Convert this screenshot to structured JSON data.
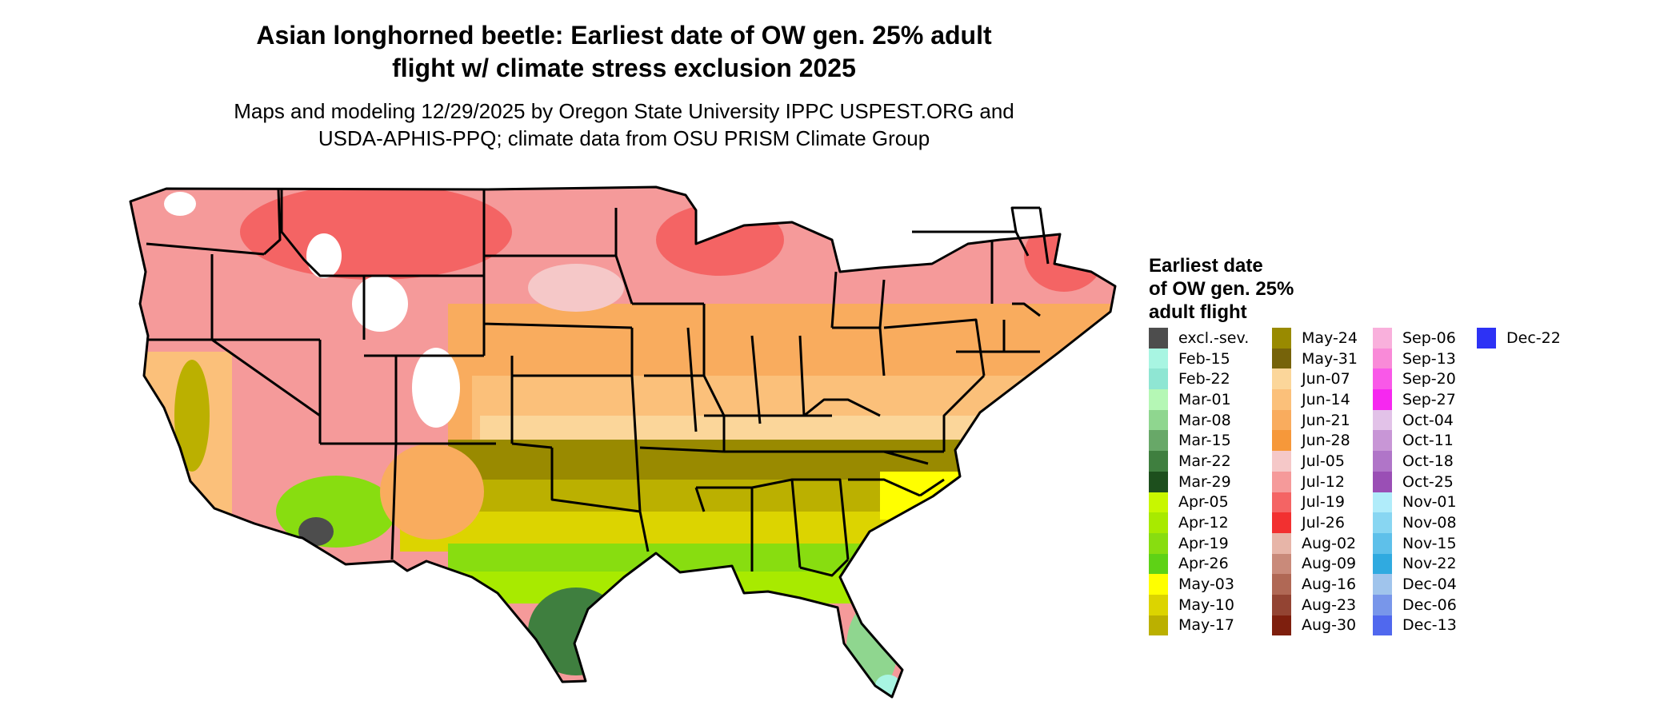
{
  "title_line1": "Asian longhorned beetle: Earliest date of OW gen. 25% adult",
  "title_line2": "flight w/ climate stress exclusion 2025",
  "subtitle_line1": "Maps and modeling 12/29/2025 by Oregon State University IPPC USPEST.ORG and",
  "subtitle_line2": "USDA-APHIS-PPQ; climate data from OSU PRISM Climate Group",
  "legend": {
    "title_line1": "Earliest date",
    "title_line2": "of OW gen. 25%",
    "title_line3": "adult flight",
    "columns": [
      [
        {
          "label": "excl.-sev.",
          "color": "#4d4d4d"
        },
        {
          "label": "Feb-15",
          "color": "#a8f5e2"
        },
        {
          "label": "Feb-22",
          "color": "#8fe6d3"
        },
        {
          "label": "Mar-01",
          "color": "#b5f7b5"
        },
        {
          "label": "Mar-08",
          "color": "#8fd68f"
        },
        {
          "label": "Mar-15",
          "color": "#68a868"
        },
        {
          "label": "Mar-22",
          "color": "#3f7f3f"
        },
        {
          "label": "Mar-29",
          "color": "#1d4f1d"
        },
        {
          "label": "Apr-05",
          "color": "#c8f700"
        },
        {
          "label": "Apr-12",
          "color": "#a8ea00"
        },
        {
          "label": "Apr-19",
          "color": "#88dd10"
        },
        {
          "label": "Apr-26",
          "color": "#5ed216"
        },
        {
          "label": "May-03",
          "color": "#ffff00"
        },
        {
          "label": "May-10",
          "color": "#dcd400"
        },
        {
          "label": "May-17",
          "color": "#bbb000"
        }
      ],
      [
        {
          "label": "May-24",
          "color": "#998a00"
        },
        {
          "label": "May-31",
          "color": "#76630a"
        },
        {
          "label": "Jun-07",
          "color": "#fbd69a"
        },
        {
          "label": "Jun-14",
          "color": "#fbc07a"
        },
        {
          "label": "Jun-21",
          "color": "#f9ac5e"
        },
        {
          "label": "Jun-28",
          "color": "#f6983a"
        },
        {
          "label": "Jul-05",
          "color": "#f5c8c8"
        },
        {
          "label": "Jul-12",
          "color": "#f59a9a"
        },
        {
          "label": "Jul-19",
          "color": "#f46464"
        },
        {
          "label": "Jul-26",
          "color": "#f23030"
        },
        {
          "label": "Aug-02",
          "color": "#e7b5a8"
        },
        {
          "label": "Aug-09",
          "color": "#c98a7a"
        },
        {
          "label": "Aug-16",
          "color": "#b06855"
        },
        {
          "label": "Aug-23",
          "color": "#934433"
        },
        {
          "label": "Aug-30",
          "color": "#7e1f0e"
        }
      ],
      [
        {
          "label": "Sep-06",
          "color": "#f9b0dc"
        },
        {
          "label": "Sep-13",
          "color": "#f98ad8"
        },
        {
          "label": "Sep-20",
          "color": "#f958e8"
        },
        {
          "label": "Sep-27",
          "color": "#f628f0"
        },
        {
          "label": "Oct-04",
          "color": "#e2c2e8"
        },
        {
          "label": "Oct-11",
          "color": "#c896d6"
        },
        {
          "label": "Oct-18",
          "color": "#b075c8"
        },
        {
          "label": "Oct-25",
          "color": "#9a4fb5"
        },
        {
          "label": "Nov-01",
          "color": "#b0ecfa"
        },
        {
          "label": "Nov-08",
          "color": "#88d6f2"
        },
        {
          "label": "Nov-15",
          "color": "#5ec0ea"
        },
        {
          "label": "Nov-22",
          "color": "#30aae0"
        },
        {
          "label": "Dec-04",
          "color": "#a0c4ec"
        },
        {
          "label": "Dec-06",
          "color": "#7896ea"
        },
        {
          "label": "Dec-13",
          "color": "#5068ee"
        }
      ],
      [
        {
          "label": "Dec-22",
          "color": "#2d32f5"
        }
      ]
    ]
  }
}
